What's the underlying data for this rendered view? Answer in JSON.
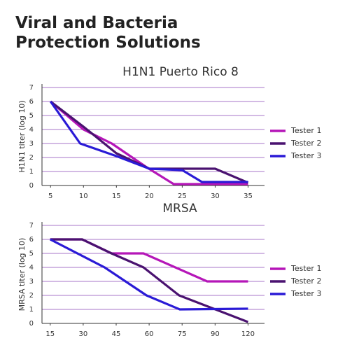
{
  "header": {
    "title_lines": [
      "Viral and Bacteria",
      "Protection Solutions"
    ]
  },
  "chart_data": [
    {
      "type": "line",
      "title": "H1N1 Puerto Rico 8",
      "y_label": "H1N1 titer (log 10)",
      "xlim": [
        3.7,
        37.5
      ],
      "xticks": [
        5,
        10,
        15,
        20,
        25,
        30,
        35
      ],
      "ylim": [
        0,
        7
      ],
      "yticks": [
        0,
        1,
        2,
        3,
        4,
        5,
        6,
        7
      ],
      "grid": true,
      "legend": "right",
      "series": [
        {
          "name": "Tester 1",
          "color": "#b516b8",
          "x": [
            5,
            10,
            14.3,
            19.6,
            23.7,
            35
          ],
          "values": [
            6,
            4,
            3,
            1.3,
            0.1,
            0.1
          ]
        },
        {
          "name": "Tester 2",
          "color": "#4a1270",
          "x": [
            5,
            10,
            15,
            20,
            30,
            35
          ],
          "values": [
            6,
            4.2,
            2.3,
            1.2,
            1.2,
            0.2
          ]
        },
        {
          "name": "Tester 3",
          "color": "#2a1ad6",
          "x": [
            5,
            9.5,
            15,
            20,
            25,
            28,
            35
          ],
          "values": [
            6,
            3,
            2.1,
            1.2,
            1.1,
            0.25,
            0.25
          ]
        }
      ]
    },
    {
      "type": "line",
      "title": "MRSA",
      "y_label": "MRSA titer (log 10)",
      "xlim": [
        -0.25,
        6.5
      ],
      "xticks": [
        {
          "value": 0,
          "label": "15"
        },
        {
          "value": 1,
          "label": "30"
        },
        {
          "value": 2,
          "label": "45"
        },
        {
          "value": 3,
          "label": "60"
        },
        {
          "value": 4,
          "label": "75"
        },
        {
          "value": 5,
          "label": "90"
        },
        {
          "value": 6,
          "label": "120"
        }
      ],
      "ylim": [
        0,
        7
      ],
      "yticks": [
        0,
        1,
        2,
        3,
        4,
        5,
        6,
        7
      ],
      "grid": true,
      "legend": "right",
      "series": [
        {
          "name": "Tester 1",
          "color": "#b516b8",
          "x": [
            0,
            0.97,
            1.86,
            2.83,
            4.76,
            6
          ],
          "values": [
            6,
            6,
            5,
            5,
            3,
            3
          ]
        },
        {
          "name": "Tester 2",
          "color": "#4a1270",
          "x": [
            0,
            0.97,
            1.86,
            2.83,
            3.91,
            6
          ],
          "values": [
            6,
            6,
            5,
            4,
            2,
            0.1
          ]
        },
        {
          "name": "Tester 3",
          "color": "#2a1ad6",
          "x": [
            0,
            1.65,
            2.92,
            3.93,
            6
          ],
          "values": [
            6,
            4,
            2,
            1,
            1.05
          ]
        }
      ]
    }
  ]
}
